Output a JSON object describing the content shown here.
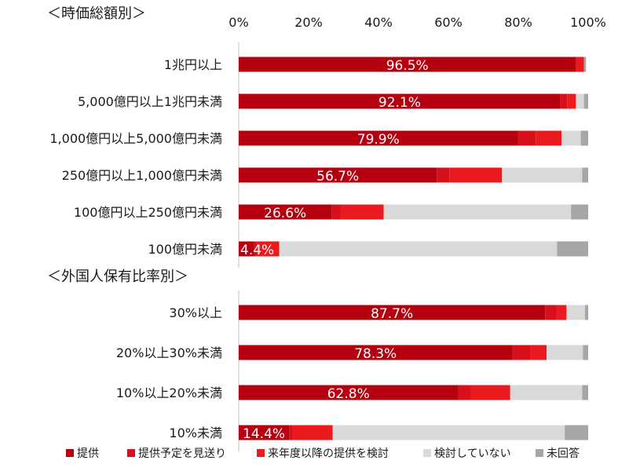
{
  "chart_data": {
    "type": "bar",
    "orientation": "horizontal",
    "stacked": true,
    "xlim": [
      0,
      100
    ],
    "x_ticks": [
      "0%",
      "20%",
      "40%",
      "60%",
      "80%",
      "100%"
    ],
    "legend_position": "bottom",
    "series": [
      {
        "name": "提供",
        "color": "#b5000f"
      },
      {
        "name": "提供予定を見送り",
        "color": "#d8101c"
      },
      {
        "name": "来年度以降の提供を検討",
        "color": "#ea1a1f"
      },
      {
        "name": "検討していない",
        "color": "#d9d9d9"
      },
      {
        "name": "未回答",
        "color": "#a6a6a6"
      }
    ],
    "groups": [
      {
        "title": "＜時価総額別＞",
        "rows": [
          {
            "label": "1兆円以上",
            "data_label": "96.5%",
            "values": [
              96.5,
              0,
              2.3,
              0,
              0.6
            ]
          },
          {
            "label": "5,000億円以上1兆円未満",
            "data_label": "92.1%",
            "values": [
              92.1,
              2.0,
              2.4,
              2.3,
              1.2
            ]
          },
          {
            "label": "1,000億円以上5,000億円未満",
            "data_label": "79.9%",
            "values": [
              79.9,
              5.1,
              7.4,
              5.5,
              2.1
            ]
          },
          {
            "label": "250億円以上1,000億円未満",
            "data_label": "56.7%",
            "values": [
              56.7,
              3.6,
              15.0,
              23.0,
              1.7
            ]
          },
          {
            "label": "100億円以上250億円未満",
            "data_label": "26.6%",
            "values": [
              26.6,
              2.5,
              12.4,
              53.6,
              4.9
            ]
          },
          {
            "label": "100億円未満",
            "data_label": "4.4%",
            "values": [
              4.4,
              0.8,
              6.4,
              79.5,
              8.9
            ]
          }
        ]
      },
      {
        "title": "＜外国人保有比率別＞",
        "rows": [
          {
            "label": "30%以上",
            "data_label": "87.7%",
            "values": [
              87.7,
              3.3,
              2.8,
              5.3,
              0.9
            ]
          },
          {
            "label": "20%以上30%未満",
            "data_label": "78.3%",
            "values": [
              78.3,
              5.2,
              4.6,
              10.4,
              1.5
            ]
          },
          {
            "label": "10%以上20%未満",
            "data_label": "62.8%",
            "values": [
              62.8,
              3.6,
              11.3,
              20.6,
              1.7
            ]
          },
          {
            "label": "10%未満",
            "data_label": "14.4%",
            "values": [
              14.4,
              1.0,
              11.5,
              66.4,
              6.7
            ]
          }
        ]
      }
    ]
  }
}
